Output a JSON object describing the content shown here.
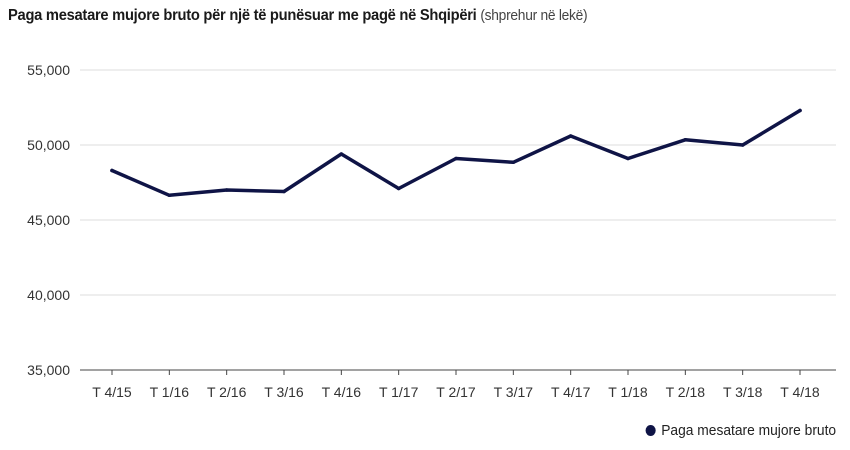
{
  "header": {
    "title": "Paga mesatare mujore bruto për një të punësuar me pagë në Shqipëri",
    "subtitle": "(shprehur në lekë)"
  },
  "legend": {
    "label": "Paga mesatare mujore bruto"
  },
  "colors": {
    "series": "#0f1446",
    "grid": "#dddddd",
    "axis": "#444444"
  },
  "chart_data": {
    "type": "line",
    "title": "Paga mesatare mujore bruto për një të punësuar me pagë në Shqipëri (shprehur në lekë)",
    "xlabel": "",
    "ylabel": "",
    "categories": [
      "T 4/15",
      "T 1/16",
      "T 2/16",
      "T 3/16",
      "T 4/16",
      "T 1/17",
      "T 2/17",
      "T 3/17",
      "T 4/17",
      "T 1/18",
      "T 2/18",
      "T 3/18",
      "T 4/18"
    ],
    "series": [
      {
        "name": "Paga mesatare mujore bruto",
        "values": [
          48300,
          46650,
          47000,
          46900,
          49400,
          47100,
          49100,
          48850,
          50600,
          49100,
          50350,
          50000,
          52300
        ]
      }
    ],
    "ylim": [
      35000,
      55000
    ],
    "yticks": [
      35000,
      40000,
      45000,
      50000,
      55000
    ],
    "ytick_labels": [
      "35,000",
      "40,000",
      "45,000",
      "50,000",
      "55,000"
    ],
    "grid": true,
    "legend_position": "bottom-right"
  }
}
